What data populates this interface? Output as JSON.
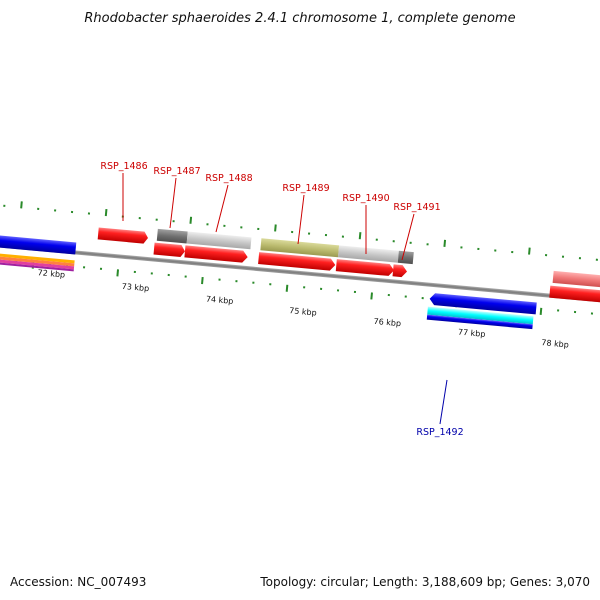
{
  "title": "Rhodobacter sphaeroides 2.4.1 chromosome 1, complete genome",
  "footer": {
    "accession": "Accession: NC_007493",
    "summary": "Topology: circular; Length: 3,188,609 bp; Genes: 3,070"
  },
  "colors": {
    "forward_gene": "#ff0000",
    "reverse_gene": "#0000ff",
    "forward_label": "#cc0000",
    "reverse_label": "#0000aa",
    "tick": "#2a8a2a",
    "backbone": "#8a8a8a"
  },
  "kbp_labels": [
    "72 kbp",
    "73 kbp",
    "74 kbp",
    "75 kbp",
    "76 kbp",
    "77 kbp",
    "78 kbp"
  ],
  "gene_labels": [
    {
      "text": "RSP_1486",
      "strand": "forward"
    },
    {
      "text": "RSP_1487",
      "strand": "forward"
    },
    {
      "text": "RSP_1488",
      "strand": "forward"
    },
    {
      "text": "RSP_1489",
      "strand": "forward"
    },
    {
      "text": "RSP_1490",
      "strand": "forward"
    },
    {
      "text": "RSP_1491",
      "strand": "forward"
    },
    {
      "text": "RSP_1492",
      "strand": "reverse"
    }
  ]
}
